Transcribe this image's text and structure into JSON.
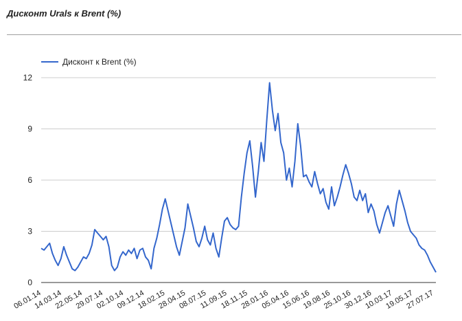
{
  "card": {
    "title": "Дисконт Urals к Brent (%)"
  },
  "chart_data": {
    "type": "line",
    "title": "",
    "xlabel": "",
    "ylabel": "",
    "ylim": [
      0,
      12
    ],
    "y_ticks": [
      "0",
      "3",
      "6",
      "9",
      "12"
    ],
    "x_tick_labels": [
      "06.01.14",
      "14.03.14",
      "22.05.14",
      "29.07.14",
      "02.10.14",
      "09.12.14",
      "18.02.15",
      "28.04.15",
      "08.07.15",
      "11.09.15",
      "18.11.15",
      "28.01.16",
      "05.04.16",
      "15.06.16",
      "19.08.16",
      "25.10.16",
      "30.12.16",
      "10.03.17",
      "19.05.17",
      "27.07.17"
    ],
    "grid": "horizontal",
    "legend_position": "top-left",
    "series": [
      {
        "name": "Дисконт к Brent (%)",
        "color": "#3366cc",
        "values": [
          2.0,
          1.9,
          2.1,
          2.3,
          1.7,
          1.3,
          1.0,
          1.4,
          2.1,
          1.6,
          1.2,
          0.8,
          0.7,
          0.9,
          1.2,
          1.5,
          1.4,
          1.7,
          2.2,
          3.1,
          2.9,
          2.7,
          2.5,
          2.7,
          2.1,
          1.0,
          0.7,
          0.9,
          1.5,
          1.8,
          1.6,
          1.9,
          1.7,
          2.0,
          1.4,
          1.9,
          2.0,
          1.5,
          1.3,
          0.8,
          2.0,
          2.6,
          3.4,
          4.3,
          4.9,
          4.2,
          3.5,
          2.8,
          2.1,
          1.6,
          2.4,
          3.2,
          4.6,
          3.9,
          3.2,
          2.4,
          2.1,
          2.6,
          3.3,
          2.5,
          2.2,
          2.9,
          2.0,
          1.5,
          2.6,
          3.6,
          3.8,
          3.4,
          3.2,
          3.1,
          3.3,
          5.0,
          6.4,
          7.6,
          8.3,
          6.8,
          5.0,
          6.5,
          8.2,
          7.1,
          9.5,
          11.7,
          10.1,
          8.9,
          9.9,
          8.2,
          7.6,
          6.0,
          6.7,
          5.6,
          7.1,
          9.3,
          8.0,
          6.2,
          6.3,
          5.9,
          5.6,
          6.5,
          5.8,
          5.2,
          5.5,
          4.7,
          4.3,
          5.6,
          4.5,
          5.0,
          5.6,
          6.3,
          6.9,
          6.4,
          5.8,
          5.0,
          4.8,
          5.4,
          4.8,
          5.2,
          4.1,
          4.6,
          4.2,
          3.4,
          2.9,
          3.5,
          4.1,
          4.5,
          3.9,
          3.3,
          4.6,
          5.4,
          4.8,
          4.2,
          3.5,
          3.0,
          2.8,
          2.6,
          2.2,
          2.0,
          1.9,
          1.6,
          1.2,
          0.9,
          0.6
        ]
      }
    ]
  }
}
